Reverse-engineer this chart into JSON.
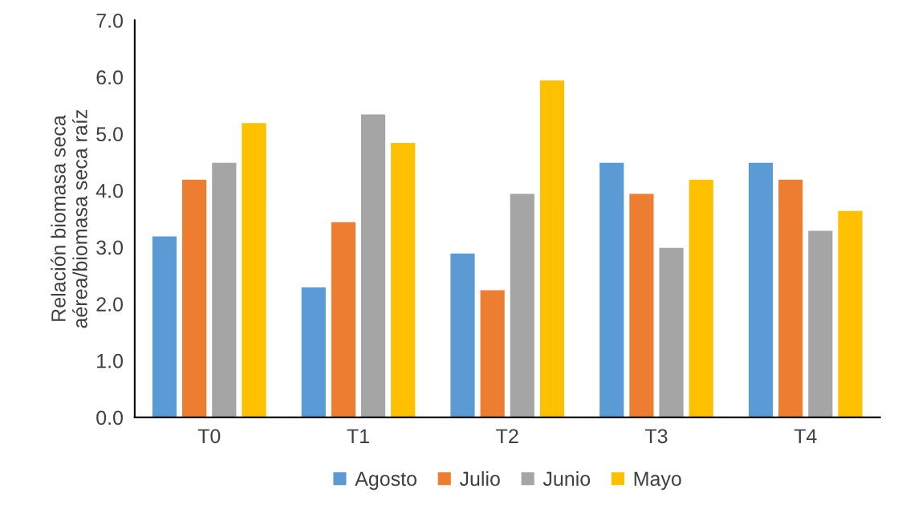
{
  "chart_data": {
    "type": "bar",
    "ylabel": "Relación biomasa seca aérea/biomasa seca raíz",
    "categories": [
      "T0",
      "T1",
      "T2",
      "T3",
      "T4"
    ],
    "series": [
      {
        "name": "Agosto",
        "color": "#5b9bd5",
        "values": [
          3.2,
          2.3,
          2.9,
          4.5,
          4.5
        ]
      },
      {
        "name": "Julio",
        "color": "#ed7d31",
        "values": [
          4.2,
          3.45,
          2.25,
          3.95,
          4.2
        ]
      },
      {
        "name": "Junio",
        "color": "#a5a5a5",
        "values": [
          4.5,
          5.35,
          3.95,
          3.0,
          3.3
        ]
      },
      {
        "name": "Mayo",
        "color": "#ffc000",
        "values": [
          5.2,
          4.85,
          5.95,
          4.2,
          3.65
        ]
      }
    ],
    "ylim": [
      0,
      7
    ],
    "yticks": [
      {
        "value": 0,
        "label": "0.0"
      },
      {
        "value": 1,
        "label": "1.0"
      },
      {
        "value": 2,
        "label": "2.0"
      },
      {
        "value": 3,
        "label": "3.0"
      },
      {
        "value": 4,
        "label": "4.0"
      },
      {
        "value": 5,
        "label": "5.0"
      },
      {
        "value": 6,
        "label": "6.0"
      },
      {
        "value": 7,
        "label": "7.0"
      }
    ],
    "grid": false,
    "legend": "bottom"
  }
}
